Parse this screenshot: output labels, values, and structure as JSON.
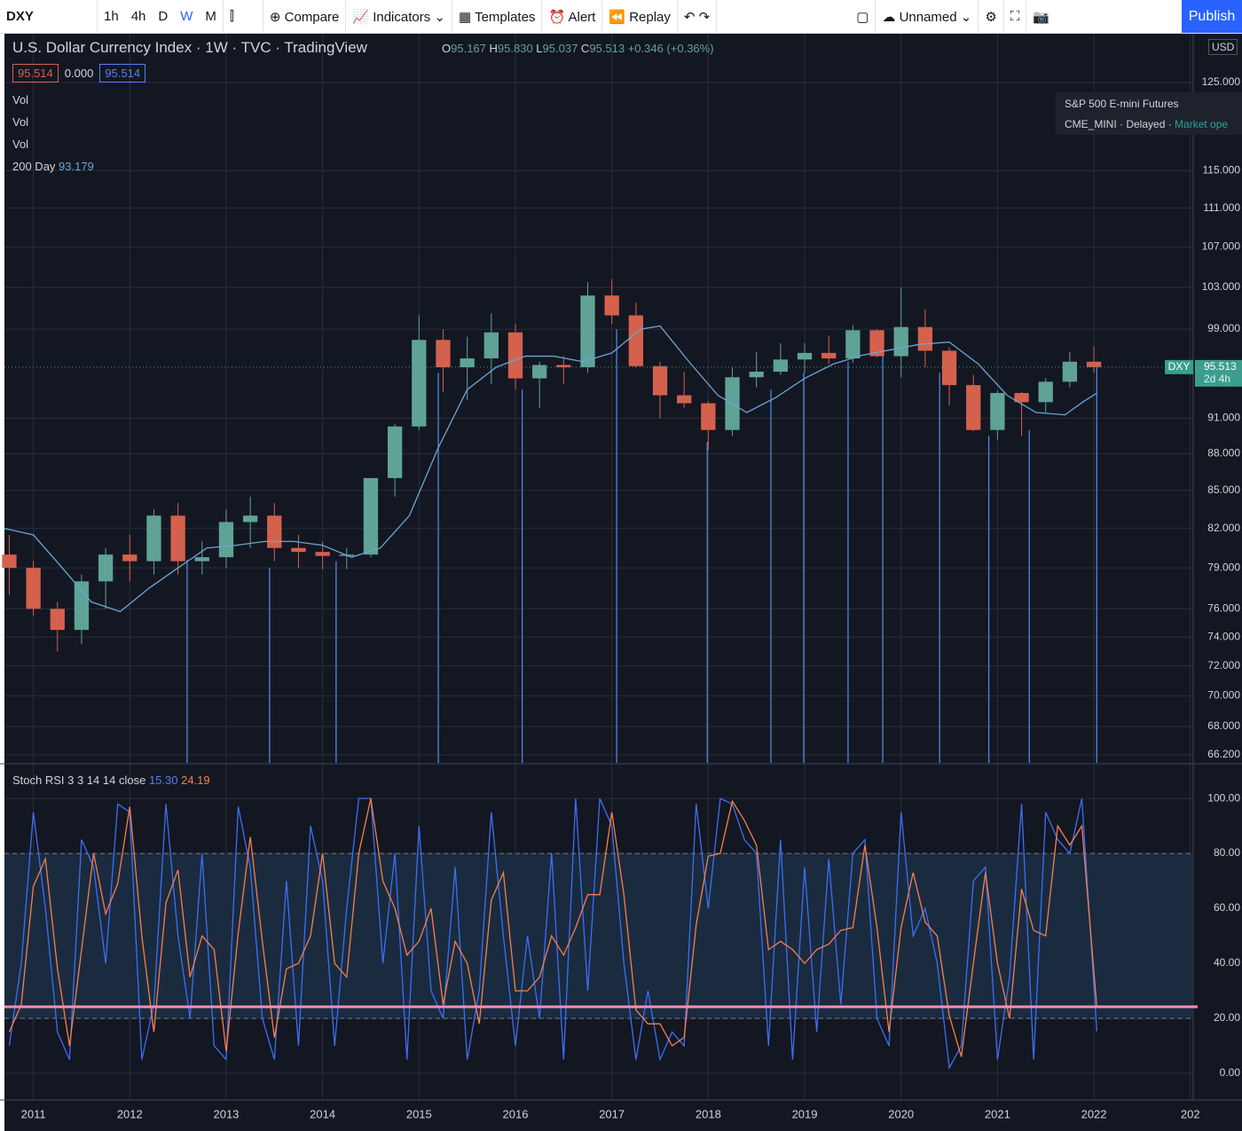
{
  "toolbar": {
    "symbol": "DXY",
    "intervals": [
      "1h",
      "4h",
      "D",
      "W",
      "M"
    ],
    "buttons": [
      "Compare",
      "Indicators",
      "Templates",
      "Alert",
      "Replay"
    ],
    "layout": "Unnamed",
    "publish": "Publish"
  },
  "legend": {
    "title": "U.S. Dollar Currency Index · 1W · TVC · TradingView",
    "ohlc": [
      {
        "key": "O",
        "value": "95.167"
      },
      {
        "key": "H",
        "value": "95.830"
      },
      {
        "key": "L",
        "value": "95.037"
      },
      {
        "key": "C",
        "value": "95.513"
      }
    ],
    "change": "+0.346 (+0.36%)",
    "boxes": [
      "95.514",
      "0.000",
      "95.514"
    ],
    "indicators": [
      "Vol",
      "Vol",
      "Vol"
    ]
  },
  "overlay": {
    "title": "S&P 500 E-mini Futures",
    "exchange": "CME_MINI",
    "status": "Delayed",
    "market": "Market ope"
  },
  "currency": "USD",
  "chart_data": [
    {
      "type": "candlestick",
      "log": true,
      "xlim": [
        2010.7,
        2023.03
      ],
      "ylim": [
        65.7,
        130.9
      ],
      "yticks": [
        {
          "value": 125,
          "label": "125.000"
        },
        {
          "value": 115,
          "label": "115.000"
        },
        {
          "value": 111,
          "label": "111.000"
        },
        {
          "value": 107,
          "label": "107.000"
        },
        {
          "value": 103,
          "label": "103.000"
        },
        {
          "value": 99,
          "label": "99.000"
        },
        {
          "value": 91,
          "label": "91.000"
        },
        {
          "value": 88,
          "label": "88.000"
        },
        {
          "value": 85,
          "label": "85.000"
        },
        {
          "value": 82,
          "label": "82.000"
        },
        {
          "value": 79,
          "label": "79.000"
        },
        {
          "value": 76,
          "label": "76.000"
        },
        {
          "value": 74,
          "label": "74.000"
        },
        {
          "value": 72,
          "label": "72.000"
        },
        {
          "value": 70,
          "label": "70.000"
        },
        {
          "value": 68,
          "label": "68.000"
        },
        {
          "value": 66.2,
          "label": "66.200"
        }
      ],
      "up_color": "#5fa397",
      "down_color": "#d4614e",
      "x": [
        2010.75,
        2011,
        2011.25,
        2011.5,
        2011.75,
        2012,
        2012.25,
        2012.5,
        2012.75,
        2013,
        2013.25,
        2013.5,
        2013.75,
        2014,
        2014.25,
        2014.5,
        2014.75,
        2015,
        2015.25,
        2015.5,
        2015.75,
        2016,
        2016.25,
        2016.5,
        2016.75,
        2017,
        2017.25,
        2017.5,
        2017.75,
        2018,
        2018.25,
        2018.5,
        2018.75,
        2019,
        2019.25,
        2019.5,
        2019.75,
        2020,
        2020.25,
        2020.5,
        2020.75,
        2021,
        2021.25,
        2021.5,
        2021.75,
        2022
      ],
      "open": [
        80,
        79,
        76,
        74.5,
        78,
        80,
        79.5,
        83,
        79.5,
        79.8,
        82.5,
        83,
        80.5,
        80.2,
        79.9,
        80,
        86,
        90.3,
        98,
        95.5,
        96.3,
        98.7,
        94.5,
        95.7,
        95.5,
        102.2,
        100.3,
        95.6,
        93,
        92.3,
        90,
        94.6,
        95.1,
        96.2,
        96.8,
        96.3,
        98.9,
        96.5,
        99.2,
        97,
        93.9,
        90,
        93.2,
        92.4,
        94.2,
        96
      ],
      "high": [
        81.5,
        79.5,
        76.5,
        78.5,
        80.5,
        81.5,
        83.5,
        84,
        81,
        83.5,
        84.5,
        84,
        81.5,
        81,
        80.5,
        86,
        90.5,
        100.3,
        99,
        98.3,
        100.5,
        99.5,
        96,
        96.5,
        103.5,
        103.8,
        101.5,
        96,
        95.1,
        92.5,
        95.5,
        96.9,
        97.7,
        97.7,
        98.4,
        99.4,
        99,
        103,
        100.9,
        97.3,
        94.8,
        93.4,
        93.3,
        94.5,
        96.9,
        97.4
      ],
      "low": [
        77,
        75.5,
        73,
        73.5,
        76,
        78,
        78.5,
        78.5,
        78.5,
        79,
        80.5,
        79.5,
        79,
        78.9,
        78.9,
        79.8,
        84.5,
        90,
        93.3,
        92.6,
        94,
        93.5,
        91.9,
        94,
        95,
        99.5,
        95.5,
        91,
        91.9,
        88.3,
        89.5,
        93.7,
        94.8,
        95,
        95.8,
        95.9,
        96.4,
        94.6,
        95.5,
        92.1,
        89.9,
        89.2,
        89.5,
        91.5,
        93.7,
        95
      ],
      "close": [
        79,
        76,
        74.5,
        78,
        80,
        79.5,
        83,
        79.5,
        79.8,
        82.5,
        83,
        80.5,
        80.2,
        79.9,
        80,
        86,
        90.3,
        98,
        95.5,
        96.3,
        98.7,
        94.5,
        95.7,
        95.5,
        102.2,
        100.3,
        95.6,
        93,
        92.3,
        90,
        94.6,
        95.1,
        96.2,
        96.8,
        96.3,
        98.9,
        96.5,
        99.2,
        97,
        93.9,
        90,
        93.2,
        92.4,
        94.2,
        96,
        95.513
      ],
      "series": [
        {
          "name": "200 Day",
          "color": "#6aa6d6",
          "x": [
            2010.7,
            2011,
            2011.3,
            2011.6,
            2011.9,
            2012.2,
            2012.5,
            2012.8,
            2013.1,
            2013.4,
            2013.7,
            2014,
            2014.3,
            2014.6,
            2014.9,
            2015.2,
            2015.5,
            2015.8,
            2016.1,
            2016.4,
            2016.7,
            2017,
            2017.3,
            2017.5,
            2017.8,
            2018.1,
            2018.4,
            2018.7,
            2019,
            2019.3,
            2019.6,
            2019.9,
            2020.2,
            2020.5,
            2020.8,
            2021.1,
            2021.4,
            2021.7,
            2021.9,
            2022.03
          ],
          "values": [
            82,
            81.5,
            79,
            76.5,
            75.8,
            77.5,
            79,
            80.5,
            80.7,
            81,
            81,
            80.7,
            79.8,
            80.5,
            83,
            88.5,
            93.5,
            95.5,
            96.5,
            96.5,
            96,
            96.8,
            99,
            99.3,
            96,
            93,
            91.5,
            92.8,
            94.5,
            95.8,
            96.6,
            97.1,
            97.6,
            97.8,
            95.8,
            93,
            91.5,
            91.3,
            92.5,
            93.179
          ]
        }
      ],
      "drawn_lines": {
        "color": "#4f86e0",
        "x": [
          2012.595,
          2013.45,
          2014.14,
          2015.2,
          2016.07,
          2017.05,
          2017.99,
          2018.65,
          2018.99,
          2019.45,
          2019.81,
          2020.4,
          2020.91,
          2021.33,
          2022.03
        ],
        "y": [
          79.6,
          79,
          79.5,
          95,
          93.5,
          99,
          89,
          93.5,
          95,
          96,
          96.5,
          95,
          89.5,
          90,
          95.5
        ]
      },
      "last_price": {
        "name": "DXY",
        "countdown": "2d 4h",
        "color": "#3a9e8f"
      }
    },
    {
      "type": "line",
      "title": "Stoch RSI 3 3 14 14 close",
      "xlim": [
        2010.7,
        2023.03
      ],
      "ylim": [
        -9.7,
        112.3
      ],
      "yticks": [
        {
          "value": 100,
          "label": "100.00"
        },
        {
          "value": 80,
          "label": "80.00"
        },
        {
          "value": 60,
          "label": "60.00"
        },
        {
          "value": 40,
          "label": "40.00"
        },
        {
          "value": 20,
          "label": "20.00"
        },
        {
          "value": 0,
          "label": "0.00"
        }
      ],
      "xticks": [
        2011,
        2012,
        2013,
        2014,
        2015,
        2016,
        2017,
        2018,
        2019,
        2020,
        2021,
        2022,
        {
          "value": 2023,
          "label": "202"
        }
      ],
      "band": [
        20,
        80
      ],
      "band_color": "#1a2b3f",
      "hline": {
        "value": 24.2,
        "color": "#f48fb1"
      },
      "x": [
        2010.75,
        2010.875,
        2011,
        2011.125,
        2011.25,
        2011.375,
        2011.5,
        2011.625,
        2011.75,
        2011.875,
        2012,
        2012.125,
        2012.25,
        2012.375,
        2012.5,
        2012.625,
        2012.75,
        2012.875,
        2013,
        2013.125,
        2013.25,
        2013.375,
        2013.5,
        2013.625,
        2013.75,
        2013.875,
        2014,
        2014.125,
        2014.25,
        2014.375,
        2014.5,
        2014.625,
        2014.75,
        2014.875,
        2015,
        2015.125,
        2015.25,
        2015.375,
        2015.5,
        2015.625,
        2015.75,
        2015.875,
        2016,
        2016.125,
        2016.25,
        2016.375,
        2016.5,
        2016.625,
        2016.75,
        2016.875,
        2017,
        2017.125,
        2017.25,
        2017.375,
        2017.5,
        2017.625,
        2017.75,
        2017.875,
        2018,
        2018.125,
        2018.25,
        2018.375,
        2018.5,
        2018.625,
        2018.75,
        2018.875,
        2019,
        2019.125,
        2019.25,
        2019.375,
        2019.5,
        2019.625,
        2019.75,
        2019.875,
        2020,
        2020.125,
        2020.25,
        2020.375,
        2020.5,
        2020.625,
        2020.75,
        2020.875,
        2021,
        2021.125,
        2021.25,
        2021.375,
        2021.5,
        2021.625,
        2021.75,
        2021.875,
        2022.03
      ],
      "series": [
        {
          "color": "#3d6ef5",
          "last_label": "15.30",
          "values": [
            10,
            40,
            95,
            60,
            15,
            5,
            85,
            75,
            40,
            98,
            95,
            5,
            25,
            98,
            50,
            20,
            80,
            10,
            5,
            97,
            75,
            20,
            5,
            70,
            10,
            90,
            70,
            10,
            60,
            100,
            100,
            40,
            80,
            5,
            90,
            30,
            20,
            75,
            5,
            30,
            95,
            50,
            10,
            50,
            20,
            80,
            5,
            100,
            30,
            100,
            90,
            40,
            5,
            30,
            5,
            15,
            10,
            98,
            60,
            100,
            98,
            85,
            80,
            10,
            85,
            5,
            75,
            15,
            78,
            25,
            80,
            85,
            20,
            10,
            95,
            50,
            60,
            40,
            2,
            10,
            70,
            75,
            5,
            35,
            98,
            5,
            95,
            85,
            80,
            100,
            15.3
          ]
        },
        {
          "color": "#f57f4d",
          "last_label": "24.19",
          "values": [
            15,
            25,
            68,
            78,
            38,
            10,
            45,
            80,
            58,
            69,
            97,
            50,
            15,
            62,
            74,
            35,
            50,
            45,
            8,
            51,
            86,
            48,
            13,
            38,
            40,
            50,
            80,
            40,
            35,
            80,
            100,
            70,
            60,
            43,
            48,
            60,
            25,
            48,
            40,
            18,
            63,
            73,
            30,
            30,
            35,
            50,
            43,
            53,
            65,
            65,
            95,
            65,
            23,
            18,
            18,
            10,
            13,
            54,
            79,
            80,
            99,
            92,
            83,
            45,
            48,
            45,
            40,
            45,
            47,
            52,
            53,
            83,
            53,
            15,
            53,
            73,
            55,
            50,
            21,
            6,
            40,
            73,
            40,
            20,
            67,
            52,
            50,
            90,
            83,
            90,
            24.19
          ]
        }
      ]
    }
  ]
}
